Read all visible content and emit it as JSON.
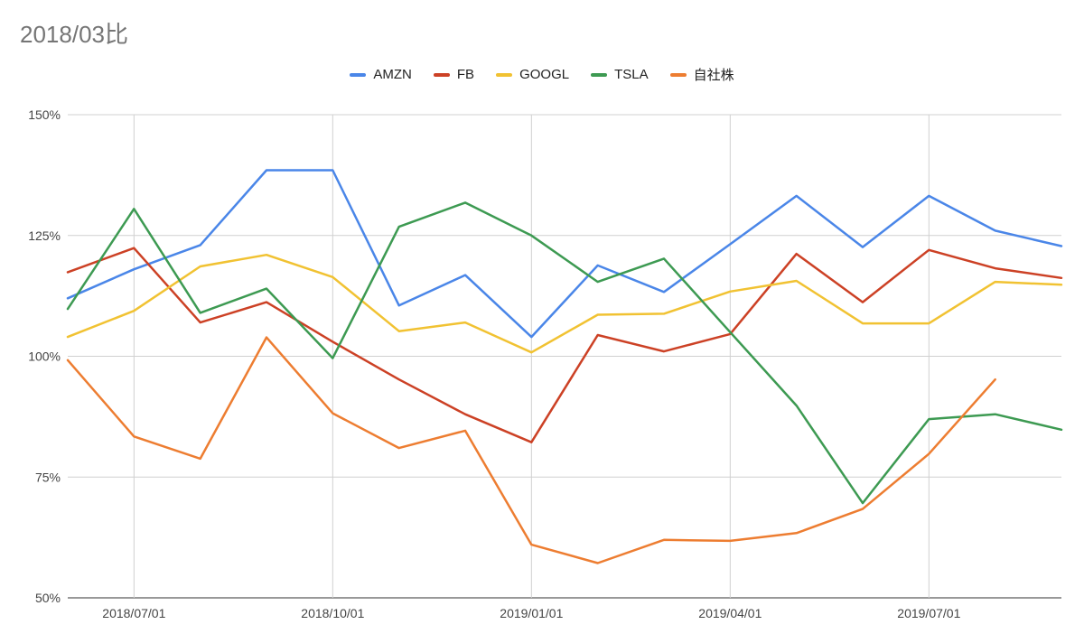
{
  "chart_data": {
    "type": "line",
    "title": "2018/03比",
    "xlabel": "",
    "ylabel": "",
    "x_tick_labels": [
      "2018/07/01",
      "2018/10/01",
      "2019/01/01",
      "2019/04/01",
      "2019/07/01"
    ],
    "y_tick_labels": [
      "50%",
      "75%",
      "100%",
      "125%",
      "150%"
    ],
    "ylim": [
      50,
      150
    ],
    "grid": true,
    "legend_position": "top",
    "x": [
      "2018/06",
      "2018/07",
      "2018/08",
      "2018/09",
      "2018/10",
      "2018/11",
      "2018/12",
      "2019/01",
      "2019/02",
      "2019/03",
      "2019/04",
      "2019/05",
      "2019/06",
      "2019/07",
      "2019/08",
      "2019/09"
    ],
    "series": [
      {
        "name": "AMZN",
        "color": "#4a86e8",
        "values": [
          112,
          118,
          123,
          138.5,
          138.5,
          110.5,
          116.8,
          104,
          118.8,
          113.3,
          123.2,
          133.2,
          122.6,
          133.2,
          126,
          122.8
        ]
      },
      {
        "name": "FB",
        "color": "#cc4125",
        "values": [
          117.4,
          122.4,
          107,
          111.2,
          103,
          95.2,
          88,
          82.2,
          104.4,
          101,
          104.6,
          121.2,
          111.2,
          122,
          118.2,
          116.2
        ]
      },
      {
        "name": "GOOGL",
        "color": "#f1c232",
        "values": [
          104,
          109.4,
          118.6,
          121,
          116.4,
          105.2,
          107,
          100.8,
          108.6,
          108.8,
          113.4,
          115.6,
          106.8,
          106.8,
          115.4,
          114.8
        ]
      },
      {
        "name": "TSLA",
        "color": "#3d9a52",
        "values": [
          109.8,
          130.5,
          109,
          114,
          99.6,
          126.8,
          131.8,
          125,
          115.4,
          120.2,
          105,
          89.8,
          69.6,
          87,
          88,
          84.8
        ]
      },
      {
        "name": "自社株",
        "color": "#ed7d31",
        "values": [
          99.2,
          83.4,
          78.8,
          103.9,
          88.2,
          81,
          84.6,
          61,
          57.2,
          62,
          61.8,
          63.4,
          68.4,
          79.8,
          95.2,
          null
        ]
      }
    ]
  }
}
